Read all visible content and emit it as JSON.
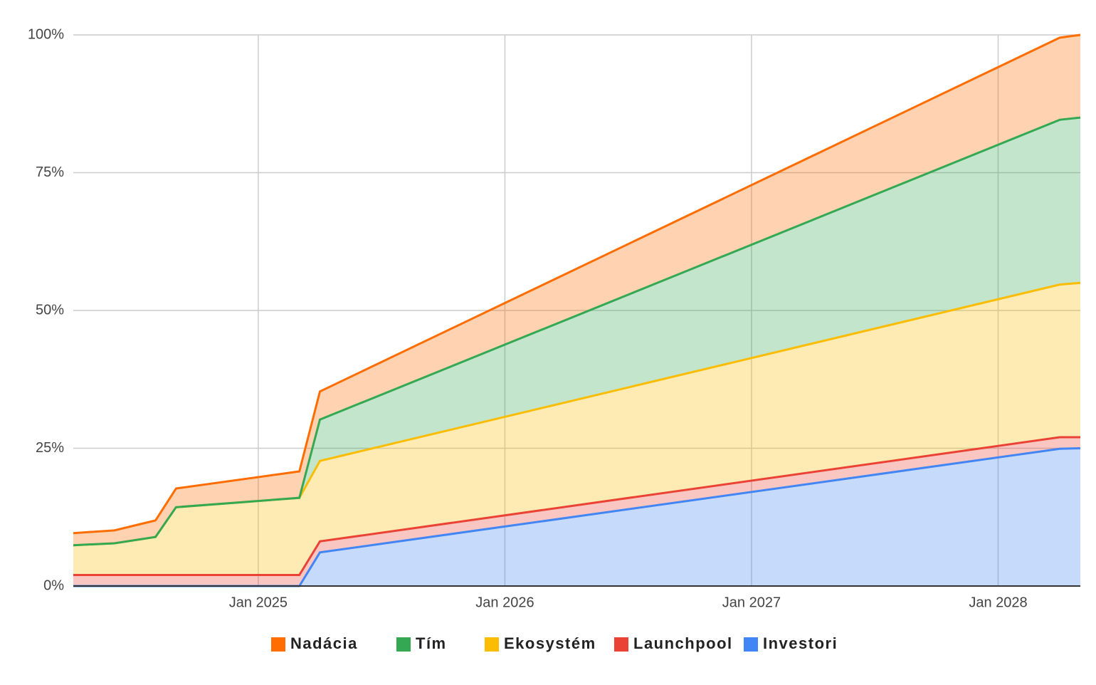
{
  "chart_data": {
    "type": "stacked-area",
    "x": [
      "2024-04",
      "2024-06",
      "2024-08",
      "2024-09",
      "2025-03",
      "2025-04",
      "2028-04",
      "2028-05"
    ],
    "series": [
      {
        "name": "Nadácia",
        "color": "#ff6d01",
        "values": [
          2.2,
          2.35,
          3.0,
          3.4,
          4.8,
          5.1,
          14.9,
          15
        ]
      },
      {
        "name": "Tím",
        "color": "#34a853",
        "values": [
          0,
          0,
          0,
          0,
          0,
          7.5,
          29.9,
          30
        ]
      },
      {
        "name": "Ekosystém",
        "color": "#fbbc04",
        "values": [
          5.4,
          5.75,
          6.9,
          12.3,
          14.0,
          14.6,
          27.7,
          28
        ]
      },
      {
        "name": "Launchpool",
        "color": "#ea4335",
        "values": [
          2,
          2,
          2,
          2,
          2,
          2,
          2.1,
          2
        ]
      },
      {
        "name": "Investori",
        "color": "#4285f4",
        "values": [
          0,
          0,
          0,
          0,
          0,
          6.1,
          24.9,
          25
        ]
      }
    ],
    "xlim": [
      "2024-04",
      "2028-05"
    ],
    "xticks": [
      {
        "value": "2025-01",
        "label": "Jan 2025"
      },
      {
        "value": "2026-01",
        "label": "Jan 2026"
      },
      {
        "value": "2027-01",
        "label": "Jan 2027"
      },
      {
        "value": "2028-01",
        "label": "Jan 2028"
      }
    ],
    "ylim": [
      0,
      100
    ],
    "yticks": [
      {
        "value": 0,
        "label": "0%"
      },
      {
        "value": 25,
        "label": "25%"
      },
      {
        "value": 50,
        "label": "50%"
      },
      {
        "value": 75,
        "label": "75%"
      },
      {
        "value": 100,
        "label": "100%"
      }
    ],
    "grid": true,
    "legend": "bottom"
  }
}
